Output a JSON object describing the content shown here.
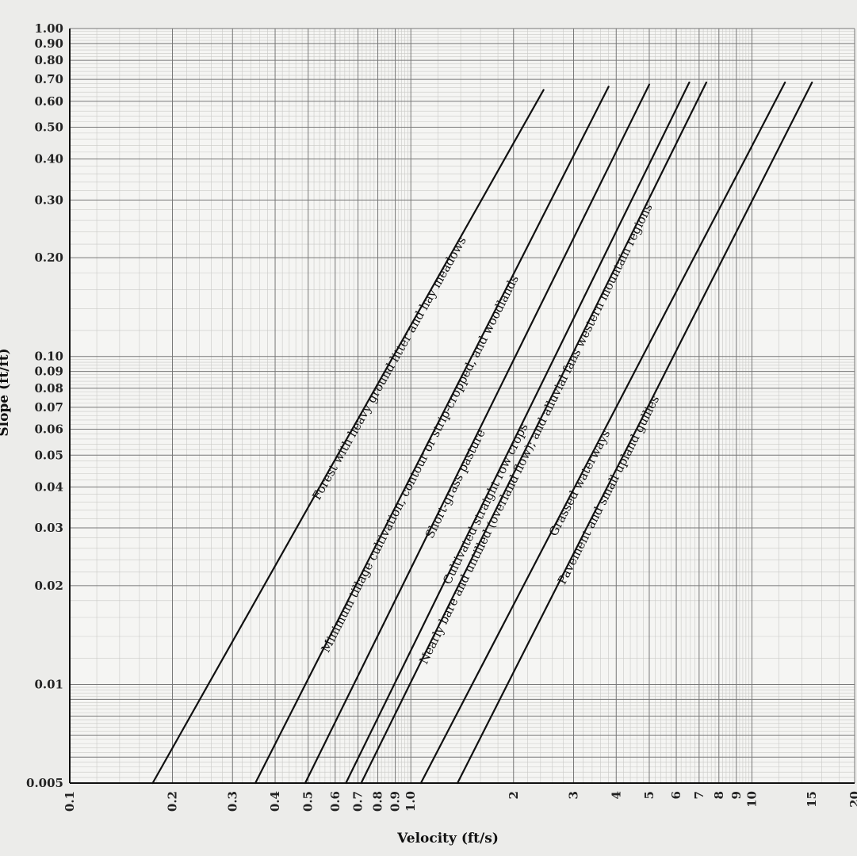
{
  "chart_data": {
    "type": "line",
    "x_scale": "log",
    "y_scale": "log",
    "xlabel": "Velocity (ft/s)",
    "ylabel": "Slope (ft/ft)",
    "xlim": [
      0.1,
      20
    ],
    "ylim": [
      0.005,
      1.0
    ],
    "grid": true,
    "x_ticks": [
      "0.1",
      "0.2",
      "0.3",
      "0.4",
      "0.5",
      "0.6",
      "0.7",
      "0.8",
      "0.9",
      "1.0",
      "2",
      "3",
      "4",
      "5",
      "6",
      "7",
      "8",
      "9",
      "10",
      "15",
      "20"
    ],
    "y_ticks": [
      "0.005",
      "0.01",
      "0.02",
      "0.03",
      "0.04",
      "0.05",
      "0.06",
      "0.07",
      "0.08",
      "0.09",
      "0.10",
      "0.20",
      "0.30",
      "0.40",
      "0.50",
      "0.60",
      "0.70",
      "0.80",
      "0.90",
      "1.00"
    ],
    "series": [
      {
        "name": "Forest with heavy ground litter and hay meadows",
        "x": [
          0.175,
          2.45
        ],
        "y": [
          0.005,
          0.65
        ]
      },
      {
        "name": "Minimum tillage cultivation, contour or strip-cropped, and woodlands",
        "x": [
          0.35,
          3.8
        ],
        "y": [
          0.005,
          0.665
        ]
      },
      {
        "name": "Short-grass pasture",
        "x": [
          0.49,
          5.0
        ],
        "y": [
          0.005,
          0.675
        ]
      },
      {
        "name": "Cultivated straight row crops",
        "x": [
          0.645,
          6.55
        ],
        "y": [
          0.005,
          0.685
        ]
      },
      {
        "name": "Nearly bare and untilled (overland flow); and alluvial fans western mountain regions",
        "x": [
          0.715,
          7.35
        ],
        "y": [
          0.005,
          0.685
        ]
      },
      {
        "name": "Grassed waterways",
        "x": [
          1.07,
          12.5
        ],
        "y": [
          0.005,
          0.685
        ]
      },
      {
        "name": "Pavement and small upland gullies",
        "x": [
          1.37,
          15.0
        ],
        "y": [
          0.005,
          0.685
        ]
      }
    ]
  }
}
